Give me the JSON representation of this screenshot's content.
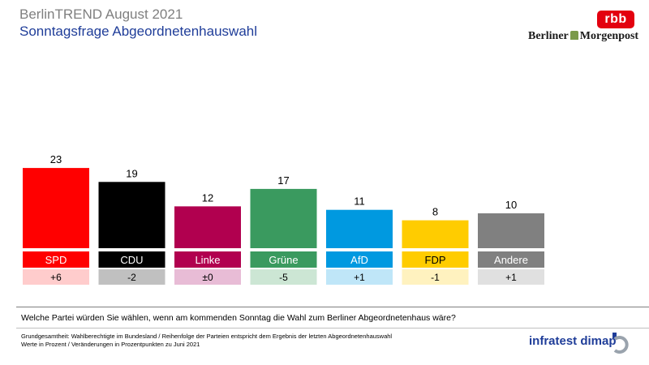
{
  "title": "BerlinTREND August 2021",
  "subtitle": "Sonntagsfrage Abgeordnetenhauswahl",
  "logos": {
    "rbb": "rbb",
    "morgenpost_left": "Berliner",
    "morgenpost_right": "Morgenpost",
    "infratest": "infratest dimap"
  },
  "chart_data": {
    "type": "bar",
    "categories": [
      "SPD",
      "CDU",
      "Linke",
      "Grüne",
      "AfD",
      "FDP",
      "Andere"
    ],
    "values": [
      23,
      19,
      12,
      17,
      11,
      8,
      10
    ],
    "changes": [
      "+6",
      "-2",
      "±0",
      "-5",
      "+1",
      "-1",
      "+1"
    ],
    "colors": [
      "#ff0000",
      "#000000",
      "#b1004f",
      "#3a9a5f",
      "#0099e0",
      "#ffcc00",
      "#808080"
    ],
    "change_colors": [
      "#ffcccc",
      "#c0c0c0",
      "#e8bcd6",
      "#cce6d4",
      "#bfe6f8",
      "#fff2bf",
      "#e0e0e0"
    ],
    "label_text_colors": [
      "#ffffff",
      "#ffffff",
      "#ffffff",
      "#ffffff",
      "#ffffff",
      "#000000",
      "#ffffff"
    ],
    "ylim": [
      0,
      25
    ]
  },
  "question": "Welche Partei würden Sie wählen, wenn am kommenden Sonntag die Wahl zum Berliner Abgeordnetenhaus wäre?",
  "footnotes": [
    "Grundgesamtheit: Wahlberechtigte im Bundesland / Reihenfolge der Parteien entspricht dem Ergebnis der letzten Abgeordnetenhauswahl",
    "Werte in Prozent / Veränderungen in Prozentpunkten zu Juni 2021"
  ]
}
